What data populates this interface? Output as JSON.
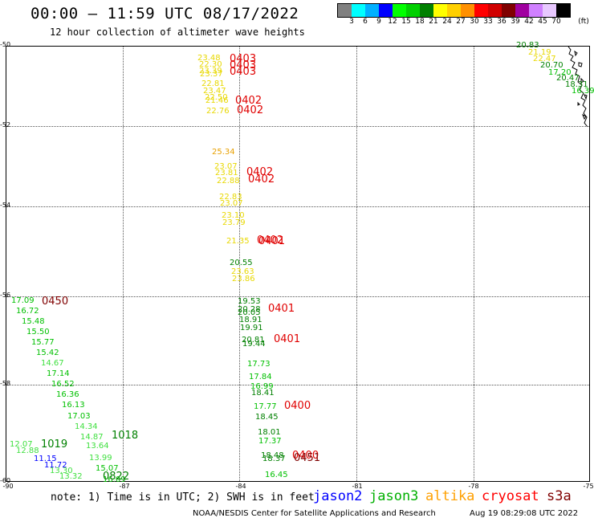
{
  "header": {
    "title": "00:00 — 11:59 UTC 08/17/2022",
    "subtitle": "12 hour collection of altimeter wave heights"
  },
  "colorbar": {
    "unit_label": "(ft)",
    "colors": [
      "#808080",
      "#00ffff",
      "#00b0ff",
      "#0000ff",
      "#00ff00",
      "#00d000",
      "#008000",
      "#ffff00",
      "#ffd000",
      "#ff9000",
      "#ff0000",
      "#d00000",
      "#800000",
      "#a000a0",
      "#d080ff",
      "#e8c8ff",
      "#000000"
    ],
    "labels": [
      "3",
      "6",
      "9",
      "12",
      "15",
      "18",
      "21",
      "24",
      "27",
      "30",
      "33",
      "36",
      "39",
      "42",
      "45",
      "70"
    ]
  },
  "axes": {
    "lat_labels": [
      "-50",
      "-52",
      "-54",
      "-56",
      "-58",
      "-60"
    ],
    "lon_labels": [
      "-90",
      "-87",
      "-84",
      "-81",
      "-78",
      "-75"
    ]
  },
  "observations": [
    {
      "text": "23.48",
      "color": "#e8d800"
    },
    {
      "text": "22.30",
      "color": "#e8d800"
    },
    {
      "text": "23.39",
      "color": "#e8d800"
    },
    {
      "text": "23.37",
      "color": "#e8d800"
    },
    {
      "text": "22.81",
      "color": "#e8d800"
    },
    {
      "text": "23.47",
      "color": "#e8d800"
    },
    {
      "text": "22.50",
      "color": "#e8d800"
    },
    {
      "text": "21.46",
      "color": "#e8d800"
    },
    {
      "text": "22.76",
      "color": "#e8d800"
    },
    {
      "text": "25.34",
      "color": "#e8a000"
    },
    {
      "text": "23.07",
      "color": "#e8d800"
    },
    {
      "text": "23.81",
      "color": "#e8d800"
    },
    {
      "text": "22.88",
      "color": "#e8d800"
    },
    {
      "text": "22.83",
      "color": "#e8d800"
    },
    {
      "text": "23.07",
      "color": "#e8d800"
    },
    {
      "text": "23.10",
      "color": "#e8d800"
    },
    {
      "text": "23.79",
      "color": "#e8d800"
    },
    {
      "text": "21.35",
      "color": "#e8d800"
    },
    {
      "text": "20.55",
      "color": "#008000"
    },
    {
      "text": "23.63",
      "color": "#e8d800"
    },
    {
      "text": "23.86",
      "color": "#e8d800"
    },
    {
      "text": "19.53",
      "color": "#008000"
    },
    {
      "text": "20.28",
      "color": "#008000"
    },
    {
      "text": "20.05",
      "color": "#008000"
    },
    {
      "text": "18.91",
      "color": "#008000"
    },
    {
      "text": "19.91",
      "color": "#008000"
    },
    {
      "text": "20.81",
      "color": "#008000"
    },
    {
      "text": "19.44",
      "color": "#008000"
    },
    {
      "text": "17.73",
      "color": "#00c000"
    },
    {
      "text": "17.84",
      "color": "#00c000"
    },
    {
      "text": "16.99",
      "color": "#00c000"
    },
    {
      "text": "18.41",
      "color": "#008000"
    },
    {
      "text": "17.77",
      "color": "#00c000"
    },
    {
      "text": "18.45",
      "color": "#008000"
    },
    {
      "text": "18.01",
      "color": "#008000"
    },
    {
      "text": "17.37",
      "color": "#00c000"
    },
    {
      "text": "18.48",
      "color": "#008000"
    },
    {
      "text": "18.37",
      "color": "#008000"
    },
    {
      "text": "16.45",
      "color": "#00c000"
    },
    {
      "text": "17.09",
      "color": "#00c000"
    },
    {
      "text": "16.72",
      "color": "#00c000"
    },
    {
      "text": "15.48",
      "color": "#00c000"
    },
    {
      "text": "15.50",
      "color": "#00c000"
    },
    {
      "text": "15.77",
      "color": "#00c000"
    },
    {
      "text": "15.42",
      "color": "#00c000"
    },
    {
      "text": "14.67",
      "color": "#40e040"
    },
    {
      "text": "17.14",
      "color": "#00c000"
    },
    {
      "text": "16.52",
      "color": "#00c000"
    },
    {
      "text": "16.36",
      "color": "#00c000"
    },
    {
      "text": "16.13",
      "color": "#00c000"
    },
    {
      "text": "17.03",
      "color": "#00c000"
    },
    {
      "text": "14.34",
      "color": "#40e040"
    },
    {
      "text": "14.87",
      "color": "#40e040"
    },
    {
      "text": "13.64",
      "color": "#40e040"
    },
    {
      "text": "12.07",
      "color": "#40e040"
    },
    {
      "text": "12.88",
      "color": "#40e040"
    },
    {
      "text": "11.15",
      "color": "#0000ff"
    },
    {
      "text": "11.72",
      "color": "#0000ff"
    },
    {
      "text": "13.99",
      "color": "#40e040"
    },
    {
      "text": "13.30",
      "color": "#40e040"
    },
    {
      "text": "13.32",
      "color": "#40e040"
    },
    {
      "text": "15.07",
      "color": "#00c000"
    },
    {
      "text": "16.09",
      "color": "#00c000"
    },
    {
      "text": "20.83",
      "color": "#008000"
    },
    {
      "text": "21.19",
      "color": "#e8d800"
    },
    {
      "text": "22.47",
      "color": "#e8d800"
    },
    {
      "text": "20.70",
      "color": "#008000"
    },
    {
      "text": "17.20",
      "color": "#00c000"
    },
    {
      "text": "20.47",
      "color": "#008000"
    },
    {
      "text": "18.31",
      "color": "#008000"
    },
    {
      "text": "16.39",
      "color": "#00c000"
    }
  ],
  "pass_times": [
    {
      "text": "0403",
      "color": "#e00000"
    },
    {
      "text": "0403",
      "color": "#e00000"
    },
    {
      "text": "0403",
      "color": "#e00000"
    },
    {
      "text": "0402",
      "color": "#e00000"
    },
    {
      "text": "0402",
      "color": "#e00000"
    },
    {
      "text": "0402",
      "color": "#e00000"
    },
    {
      "text": "0402",
      "color": "#e00000"
    },
    {
      "text": "0402",
      "color": "#e00000"
    },
    {
      "text": "0401",
      "color": "#e00000"
    },
    {
      "text": "0401",
      "color": "#e00000"
    },
    {
      "text": "0401",
      "color": "#e00000"
    },
    {
      "text": "0400",
      "color": "#e00000"
    },
    {
      "text": "0400",
      "color": "#e00000"
    },
    {
      "text": "0451",
      "color": "#800000"
    },
    {
      "text": "0450",
      "color": "#800000"
    },
    {
      "text": "1018",
      "color": "#008000"
    },
    {
      "text": "1019",
      "color": "#008000"
    },
    {
      "text": "0822",
      "color": "#008000"
    }
  ],
  "footer": {
    "note": "note: 1) Time is in UTC; 2) SWH is in feet",
    "legend": [
      {
        "label": "jason2",
        "color": "#0000ff"
      },
      {
        "label": "jason3",
        "color": "#00b000"
      },
      {
        "label": "altika",
        "color": "#ffa000"
      },
      {
        "label": "cryosat",
        "color": "#ff0000"
      },
      {
        "label": "s3a",
        "color": "#800000"
      }
    ],
    "credit": "NOAA/NESDIS Center for Satellite Applications and Research",
    "timestamp": "Aug 19 08:29:08 UTC 2022"
  }
}
